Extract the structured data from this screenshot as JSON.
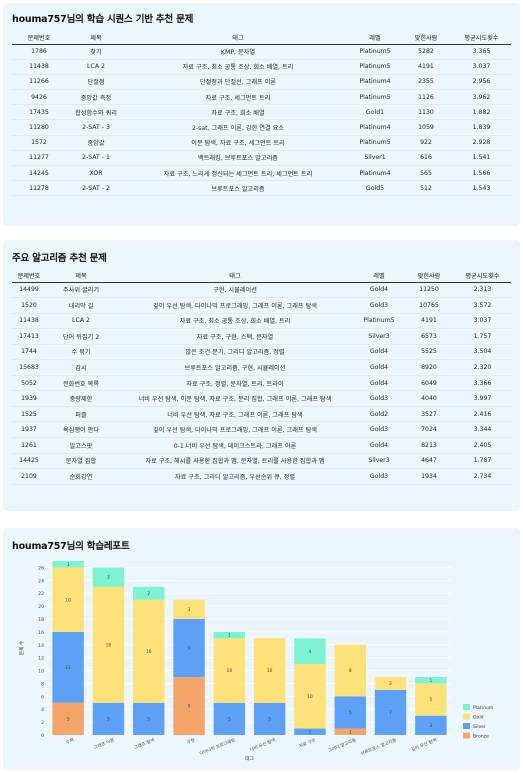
{
  "sequence_section": {
    "title": "houma757님의 학습 시퀀스 기반 추천 문제",
    "columns": [
      "문제번호",
      "제목",
      "태그",
      "레벨",
      "맞힌사람",
      "평균시도횟수"
    ],
    "rows": [
      [
        "1786",
        "찾기",
        "KMP, 문자열",
        "Platinum5",
        "5282",
        "3.365"
      ],
      [
        "11438",
        "LCA 2",
        "자료 구조, 최소 공통 조상, 희소 배열, 트리",
        "Platinum5",
        "4191",
        "3.037"
      ],
      [
        "11266",
        "단절점",
        "단절점과 단절선, 그래프 이론",
        "Platinum4",
        "2355",
        "2.956"
      ],
      [
        "9426",
        "중앙값 측정",
        "자료 구조, 세그먼트 트리",
        "Platinum5",
        "1126",
        "3.962"
      ],
      [
        "17435",
        "합성함수와 쿼리",
        "자료 구조, 희소 배열",
        "Gold1",
        "1130",
        "1.882"
      ],
      [
        "11280",
        "2-SAT - 3",
        "2-sat, 그래프 이론, 강한 연결 요소",
        "Platinum4",
        "1059",
        "1.839"
      ],
      [
        "1572",
        "중앙값",
        "이분 탐색, 자료 구조, 세그먼트 트리",
        "Platinum5",
        "922",
        "2.928"
      ],
      [
        "11277",
        "2-SAT - 1",
        "백트래킹, 브루트포스 알고리즘",
        "Silver1",
        "616",
        "1.541"
      ],
      [
        "14245",
        "XOR",
        "자료 구조, 느리게 갱신되는 세그먼트 트리, 세그먼트 트리",
        "Platinum4",
        "565",
        "1.566"
      ],
      [
        "11278",
        "2-SAT - 2",
        "브루트포스 알고리즘",
        "Gold5",
        "512",
        "1.543"
      ]
    ]
  },
  "algorithm_section": {
    "title": "주요 알고리즘 추천 문제",
    "columns": [
      "문제번호",
      "제목",
      "태그",
      "레벨",
      "맞힌사람",
      "평균시도횟수"
    ],
    "rows": [
      [
        "14499",
        "주사위 굴리기",
        "구현, 시뮬레이션",
        "Gold4",
        "11250",
        "2.313"
      ],
      [
        "1520",
        "내리막 길",
        "깊이 우선 탐색, 다이나믹 프로그래밍, 그래프 이론, 그래프 탐색",
        "Gold3",
        "10765",
        "3.572"
      ],
      [
        "11438",
        "LCA 2",
        "자료 구조, 최소 공통 조상, 희소 배열, 트리",
        "Platinum5",
        "4191",
        "3.037"
      ],
      [
        "17413",
        "단어 뒤집기 2",
        "자료 구조, 구현, 스택, 문자열",
        "Silver3",
        "6573",
        "1.757"
      ],
      [
        "1744",
        "수 묶기",
        "많은 조건 분기, 그리디 알고리즘, 정렬",
        "Gold4",
        "5525",
        "3.504"
      ],
      [
        "15683",
        "감시",
        "브루트포스 알고리즘, 구현, 시뮬레이션",
        "Gold4",
        "8920",
        "2.320"
      ],
      [
        "5052",
        "전화번호 목록",
        "자료 구조, 정렬, 문자열, 트리, 트라이",
        "Gold4",
        "6049",
        "3.366"
      ],
      [
        "1939",
        "중량제한",
        "너비 우선 탐색, 이분 탐색, 자료 구조, 분리 집합, 그래프 이론, 그래프 탐색",
        "Gold3",
        "4040",
        "3.997"
      ],
      [
        "1525",
        "퍼즐",
        "너비 우선 탐색, 자료 구조, 그래프 이론, 그래프 탐색",
        "Gold2",
        "3527",
        "2.416"
      ],
      [
        "1937",
        "욕심쟁이 판다",
        "깊이 우선 탐색, 다이나믹 프로그래밍, 그래프 이론, 그래프 탐색",
        "Gold3",
        "7024",
        "3.344"
      ],
      [
        "1261",
        "알고스팟",
        "0-1 너비 우선 탐색, 데이크스트라, 그래프 이론",
        "Gold4",
        "8213",
        "2.405"
      ],
      [
        "14425",
        "문자열 집합",
        "자료 구조, 해시를 사용한 집합과 맵, 문자열, 트리를 사용한 집합과 맵",
        "Silver3",
        "4647",
        "1.787"
      ],
      [
        "2109",
        "순회강연",
        "자료 구조, 그리디 알고리즘, 우선순위 큐, 정렬",
        "Gold3",
        "1934",
        "2.734"
      ]
    ]
  },
  "report_section": {
    "title": "houma757님의 학습레포트"
  },
  "chart_data": {
    "type": "bar",
    "stacked": true,
    "title": "",
    "xlabel": "태그",
    "ylabel": "문제 수",
    "ylim": [
      0,
      27
    ],
    "yticks": [
      0,
      2,
      4,
      6,
      8,
      10,
      12,
      14,
      16,
      18,
      20,
      22,
      24,
      26
    ],
    "grid": true,
    "legend_position": "right",
    "categories": [
      "수학",
      "그래프 이론",
      "그래프 탐색",
      "구현",
      "다이나믹 프로그래밍",
      "너비 우선 탐색",
      "자료 구조",
      "그리디 알고리즘",
      "브루트포스 알고리즘",
      "깊이 우선 탐색"
    ],
    "series": [
      {
        "name": "Bronze",
        "color": "#f5a46a",
        "values": [
          5,
          0,
          0,
          9,
          0,
          0,
          0,
          1,
          0,
          0
        ]
      },
      {
        "name": "Silver",
        "color": "#5ea0f5",
        "values": [
          11,
          5,
          5,
          9,
          5,
          5,
          1,
          5,
          7,
          3
        ]
      },
      {
        "name": "Gold",
        "color": "#fde27a",
        "values": [
          10,
          18,
          16,
          3,
          10,
          10,
          10,
          8,
          2,
          5
        ]
      },
      {
        "name": "Platinum",
        "color": "#7ff3d1",
        "values": [
          1,
          3,
          2,
          0,
          1,
          0,
          4,
          0,
          0,
          1
        ]
      }
    ],
    "legend_order": [
      "Platinum",
      "Gold",
      "Silver",
      "Bronze"
    ]
  }
}
